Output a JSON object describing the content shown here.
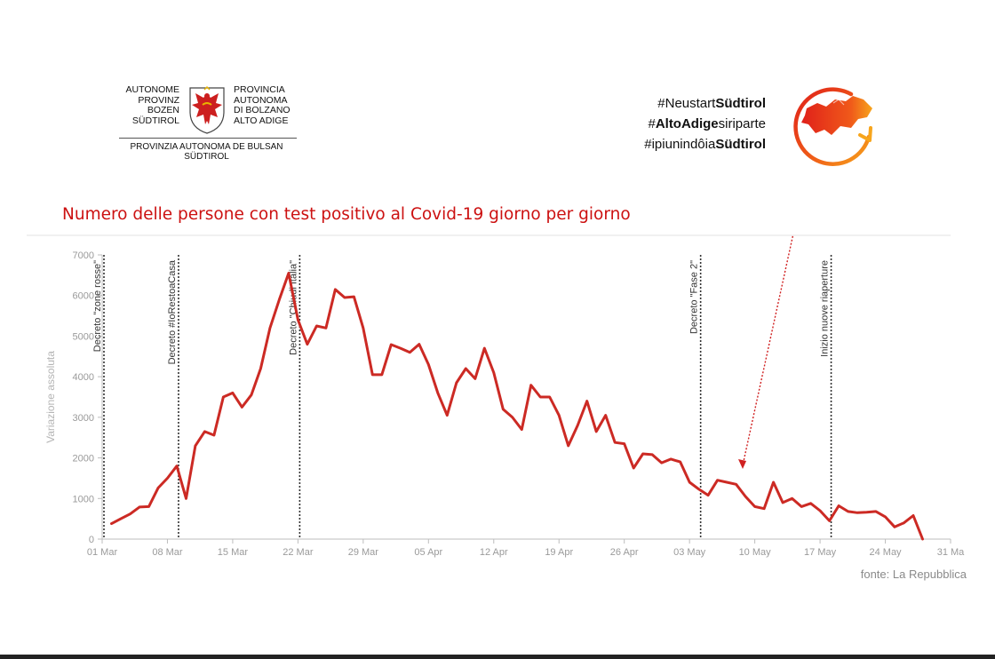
{
  "logo": {
    "left_lines": [
      "AUTONOME",
      "PROVINZ",
      "BOZEN",
      "SÜDTIROL"
    ],
    "right_lines": [
      "PROVINCIA",
      "AUTONOMA",
      "DI BOLZANO",
      "ALTO ADIGE"
    ],
    "bottom_lines": [
      "PROVINZIA AUTONOMA DE BULSAN",
      "SÜDTIROL"
    ]
  },
  "hashtags": [
    {
      "plain": "#Neustart",
      "bold": "Südtirol",
      "plain2": ""
    },
    {
      "plain": "#",
      "bold": "AltoAdige",
      "plain2": "siriparte"
    },
    {
      "plain": "#ipiunindôia",
      "bold": "Südtirol",
      "plain2": ""
    }
  ],
  "headline": "Numero delle persone con test positivo al Covid-19 giorno per giorno",
  "source": "fonte: La Repubblica",
  "colors": {
    "series": "#cc2a24",
    "headline": "#cc1111",
    "axis_text": "#9a9a9a",
    "annotation_text": "#333333",
    "arrow": "#d02020"
  },
  "chart_data": {
    "type": "line",
    "title": "",
    "xlabel": "",
    "ylabel": "Variazione assoluta",
    "ylim": [
      0,
      7000
    ],
    "yticks": [
      0,
      1000,
      2000,
      3000,
      4000,
      5000,
      6000,
      7000
    ],
    "xlim": [
      0,
      91
    ],
    "xticks": [
      {
        "day": 0,
        "label": "01 Mar"
      },
      {
        "day": 7,
        "label": "08 Mar"
      },
      {
        "day": 14,
        "label": "15 Mar"
      },
      {
        "day": 21,
        "label": "22 Mar"
      },
      {
        "day": 28,
        "label": "29 Mar"
      },
      {
        "day": 35,
        "label": "05 Apr"
      },
      {
        "day": 42,
        "label": "12 Apr"
      },
      {
        "day": 49,
        "label": "19 Apr"
      },
      {
        "day": 56,
        "label": "26 Apr"
      },
      {
        "day": 63,
        "label": "03 May"
      },
      {
        "day": 70,
        "label": "10 May"
      },
      {
        "day": 77,
        "label": "17 May"
      },
      {
        "day": 84,
        "label": "24 May"
      },
      {
        "day": 91,
        "label": "31 Ma"
      }
    ],
    "grid": false,
    "annotations": [
      {
        "day": 0,
        "label": "Decreto \"zone rosse\""
      },
      {
        "day": 8,
        "label": "Decreto #IoRestoaCasa"
      },
      {
        "day": 21,
        "label": "Decreto \"Chiudi Italia\""
      },
      {
        "day": 64,
        "label": "Decreto \"Fase 2\""
      },
      {
        "day": 78,
        "label": "Inizio nuove riaperture"
      }
    ],
    "series": [
      {
        "name": "",
        "x": [
          1,
          2,
          3,
          4,
          5,
          6,
          7,
          8,
          9,
          10,
          11,
          12,
          13,
          14,
          15,
          16,
          17,
          18,
          19,
          20,
          21,
          22,
          23,
          24,
          25,
          26,
          27,
          28,
          29,
          30,
          31,
          32,
          33,
          34,
          35,
          36,
          37,
          38,
          39,
          40,
          41,
          42,
          43,
          44,
          45,
          46,
          47,
          48,
          49,
          50,
          51,
          52,
          53,
          54,
          55,
          56,
          57,
          58,
          59,
          60,
          61,
          62,
          63,
          64,
          65,
          66,
          67,
          68,
          69,
          70,
          71,
          72,
          73,
          74,
          75,
          76,
          77,
          78,
          79,
          80,
          81,
          82,
          83,
          84,
          85,
          86,
          87,
          88
        ],
        "values": [
          380,
          500,
          620,
          790,
          800,
          1260,
          1500,
          1800,
          1000,
          2300,
          2650,
          2560,
          3500,
          3600,
          3250,
          3550,
          4200,
          5200,
          5900,
          6550,
          5400,
          4800,
          5250,
          5200,
          6150,
          5950,
          5970,
          5200,
          4050,
          4050,
          4790,
          4700,
          4600,
          4800,
          4300,
          3600,
          3050,
          3850,
          4200,
          3950,
          4700,
          4100,
          3200,
          3000,
          2700,
          3790,
          3500,
          3500,
          3050,
          2300,
          2800,
          3400,
          2650,
          3050,
          2380,
          2350,
          1750,
          2100,
          2080,
          1880,
          1970,
          1900,
          1400,
          1230,
          1080,
          1450,
          1400,
          1350,
          1050,
          800,
          750,
          1400,
          900,
          1000,
          800,
          880,
          700,
          450,
          820,
          680,
          650,
          660,
          680,
          550,
          300,
          400,
          580,
          1
        ]
      }
    ]
  }
}
